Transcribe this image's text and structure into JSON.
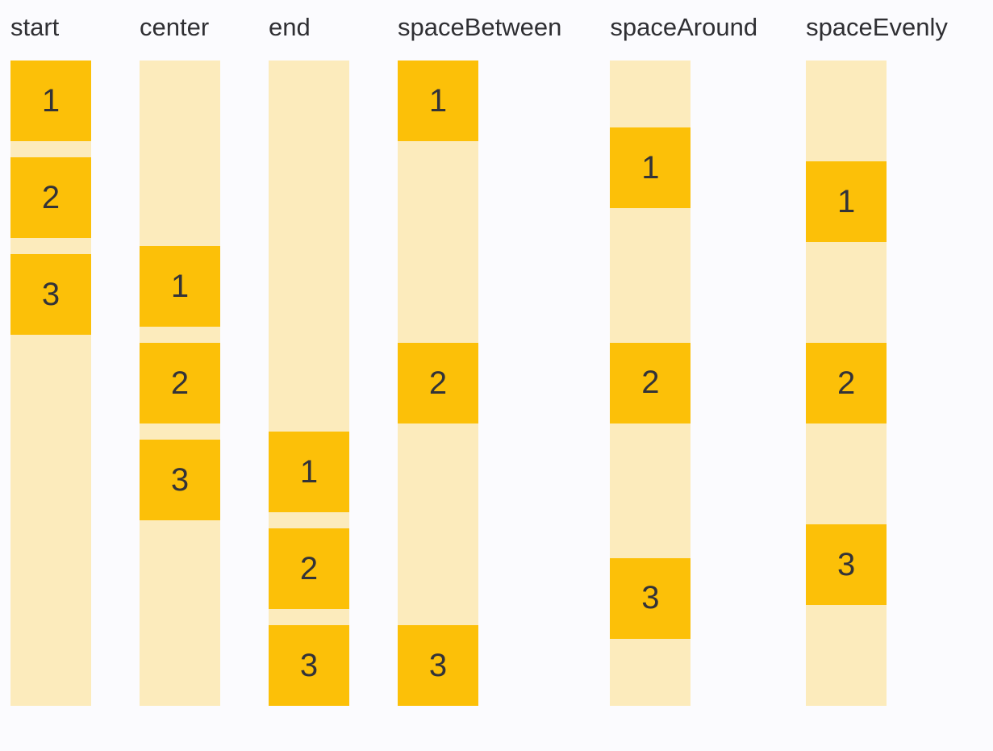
{
  "colors": {
    "background": "#fbfbfe",
    "box": "#fcc008",
    "track": "#fcebbc",
    "label_text": "#2f2f33",
    "box_number_text": "#333338"
  },
  "layout_demo": {
    "columns": [
      {
        "label": "start",
        "justify": "start",
        "items": [
          "1",
          "2",
          "3"
        ]
      },
      {
        "label": "center",
        "justify": "center",
        "items": [
          "1",
          "2",
          "3"
        ]
      },
      {
        "label": "end",
        "justify": "end",
        "items": [
          "1",
          "2",
          "3"
        ]
      },
      {
        "label": "spaceBetween",
        "justify": "spaceBetween",
        "items": [
          "1",
          "2",
          "3"
        ]
      },
      {
        "label": "spaceAround",
        "justify": "spaceAround",
        "items": [
          "1",
          "2",
          "3"
        ]
      },
      {
        "label": "spaceEvenly",
        "justify": "spaceEvenly",
        "items": [
          "1",
          "2",
          "3"
        ]
      }
    ]
  }
}
